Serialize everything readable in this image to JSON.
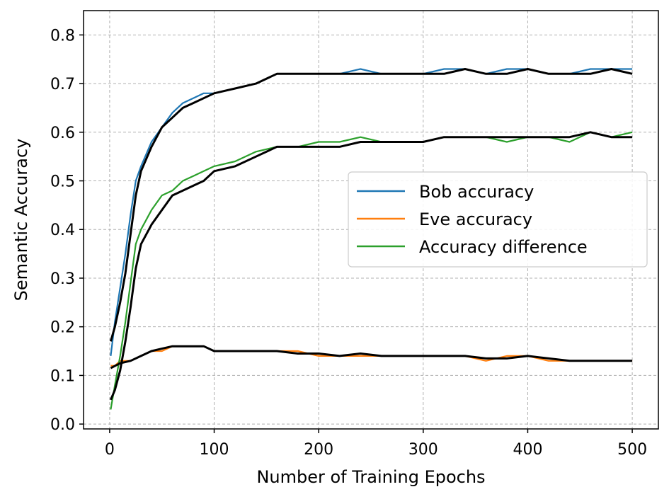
{
  "chart_data": {
    "type": "line",
    "xlabel": "Number of Training Epochs",
    "ylabel": "Semantic Accuracy",
    "xlim": [
      -25,
      525
    ],
    "ylim": [
      -0.01,
      0.85
    ],
    "xticks": [
      0,
      100,
      200,
      300,
      400,
      500
    ],
    "yticks": [
      0.0,
      0.1,
      0.2,
      0.3,
      0.4,
      0.5,
      0.6,
      0.7,
      0.8
    ],
    "grid": true,
    "legend_position": "center-right",
    "series": [
      {
        "name": "Bob accuracy",
        "color": "#1f77b4",
        "style": "raw",
        "x": [
          1,
          5,
          10,
          15,
          20,
          25,
          30,
          40,
          50,
          60,
          70,
          80,
          90,
          100,
          120,
          140,
          160,
          180,
          200,
          220,
          240,
          260,
          280,
          300,
          320,
          340,
          360,
          380,
          400,
          420,
          440,
          460,
          480,
          500
        ],
        "y": [
          0.14,
          0.21,
          0.28,
          0.35,
          0.43,
          0.5,
          0.53,
          0.58,
          0.61,
          0.64,
          0.66,
          0.67,
          0.68,
          0.68,
          0.69,
          0.7,
          0.72,
          0.72,
          0.72,
          0.72,
          0.73,
          0.72,
          0.72,
          0.72,
          0.73,
          0.73,
          0.72,
          0.73,
          0.73,
          0.72,
          0.72,
          0.73,
          0.73,
          0.73
        ]
      },
      {
        "name": "Eve accuracy",
        "color": "#ff7f0e",
        "style": "raw",
        "x": [
          1,
          5,
          10,
          20,
          30,
          40,
          50,
          60,
          70,
          80,
          90,
          100,
          120,
          140,
          160,
          180,
          200,
          220,
          240,
          260,
          280,
          300,
          320,
          340,
          360,
          380,
          400,
          420,
          440,
          460,
          480,
          500
        ],
        "y": [
          0.12,
          0.12,
          0.13,
          0.13,
          0.14,
          0.15,
          0.15,
          0.16,
          0.16,
          0.16,
          0.16,
          0.15,
          0.15,
          0.15,
          0.15,
          0.15,
          0.14,
          0.14,
          0.14,
          0.14,
          0.14,
          0.14,
          0.14,
          0.14,
          0.13,
          0.14,
          0.14,
          0.13,
          0.13,
          0.13,
          0.13,
          0.13
        ]
      },
      {
        "name": "Accuracy difference",
        "color": "#2ca02c",
        "style": "raw",
        "x": [
          1,
          5,
          10,
          15,
          20,
          25,
          30,
          40,
          50,
          60,
          70,
          80,
          90,
          100,
          120,
          140,
          160,
          180,
          200,
          220,
          240,
          260,
          280,
          300,
          320,
          340,
          360,
          380,
          400,
          420,
          440,
          460,
          480,
          500
        ],
        "y": [
          0.03,
          0.08,
          0.14,
          0.21,
          0.29,
          0.37,
          0.4,
          0.44,
          0.47,
          0.48,
          0.5,
          0.51,
          0.52,
          0.53,
          0.54,
          0.56,
          0.57,
          0.57,
          0.58,
          0.58,
          0.59,
          0.58,
          0.58,
          0.58,
          0.59,
          0.59,
          0.59,
          0.58,
          0.59,
          0.59,
          0.58,
          0.6,
          0.59,
          0.6
        ]
      }
    ],
    "smoothed": [
      {
        "color": "#000000",
        "x": [
          1,
          5,
          10,
          15,
          20,
          25,
          30,
          40,
          50,
          60,
          70,
          80,
          90,
          100,
          120,
          140,
          160,
          180,
          200,
          220,
          240,
          260,
          280,
          300,
          320,
          340,
          360,
          380,
          400,
          420,
          440,
          460,
          480,
          500
        ],
        "y": [
          0.17,
          0.2,
          0.25,
          0.31,
          0.39,
          0.47,
          0.52,
          0.57,
          0.61,
          0.63,
          0.65,
          0.66,
          0.67,
          0.68,
          0.69,
          0.7,
          0.72,
          0.72,
          0.72,
          0.72,
          0.72,
          0.72,
          0.72,
          0.72,
          0.72,
          0.73,
          0.72,
          0.72,
          0.73,
          0.72,
          0.72,
          0.72,
          0.73,
          0.72
        ]
      },
      {
        "color": "#000000",
        "x": [
          1,
          10,
          20,
          30,
          40,
          50,
          60,
          70,
          80,
          90,
          100,
          120,
          140,
          160,
          180,
          200,
          220,
          240,
          260,
          280,
          300,
          320,
          340,
          360,
          380,
          400,
          420,
          440,
          460,
          480,
          500
        ],
        "y": [
          0.115,
          0.125,
          0.13,
          0.14,
          0.15,
          0.155,
          0.16,
          0.16,
          0.16,
          0.16,
          0.15,
          0.15,
          0.15,
          0.15,
          0.145,
          0.145,
          0.14,
          0.145,
          0.14,
          0.14,
          0.14,
          0.14,
          0.14,
          0.135,
          0.135,
          0.14,
          0.135,
          0.13,
          0.13,
          0.13,
          0.13
        ]
      },
      {
        "color": "#000000",
        "x": [
          1,
          5,
          10,
          15,
          20,
          25,
          30,
          40,
          50,
          60,
          70,
          80,
          90,
          100,
          120,
          140,
          160,
          180,
          200,
          220,
          240,
          260,
          280,
          300,
          320,
          340,
          360,
          380,
          400,
          420,
          440,
          460,
          480,
          500
        ],
        "y": [
          0.05,
          0.07,
          0.11,
          0.17,
          0.24,
          0.32,
          0.37,
          0.41,
          0.44,
          0.47,
          0.48,
          0.49,
          0.5,
          0.52,
          0.53,
          0.55,
          0.57,
          0.57,
          0.57,
          0.57,
          0.58,
          0.58,
          0.58,
          0.58,
          0.59,
          0.59,
          0.59,
          0.59,
          0.59,
          0.59,
          0.59,
          0.6,
          0.59,
          0.59
        ]
      }
    ]
  }
}
